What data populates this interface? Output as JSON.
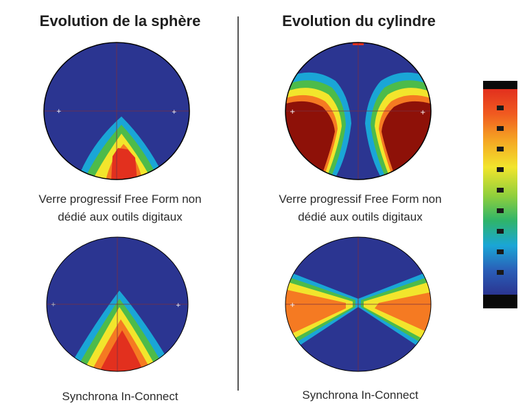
{
  "titles": {
    "sphere": "Evolution de la sphère",
    "cylinder": "Evolution du cylindre"
  },
  "captions": {
    "freeform_line1": "Verre progressif Free Form non",
    "freeform_line2": "dédié aux outils digitaux",
    "synchrona": "Synchrona In-Connect"
  },
  "colors": {
    "background_blue": "#2b3591",
    "cyan": "#1aa6d6",
    "green": "#4dbb4a",
    "yellow": "#f2e52c",
    "orange": "#f57a22",
    "red": "#e2301e",
    "dark_red": "#8e1108",
    "border": "#000000"
  },
  "color_scale": {
    "steps": 9
  }
}
